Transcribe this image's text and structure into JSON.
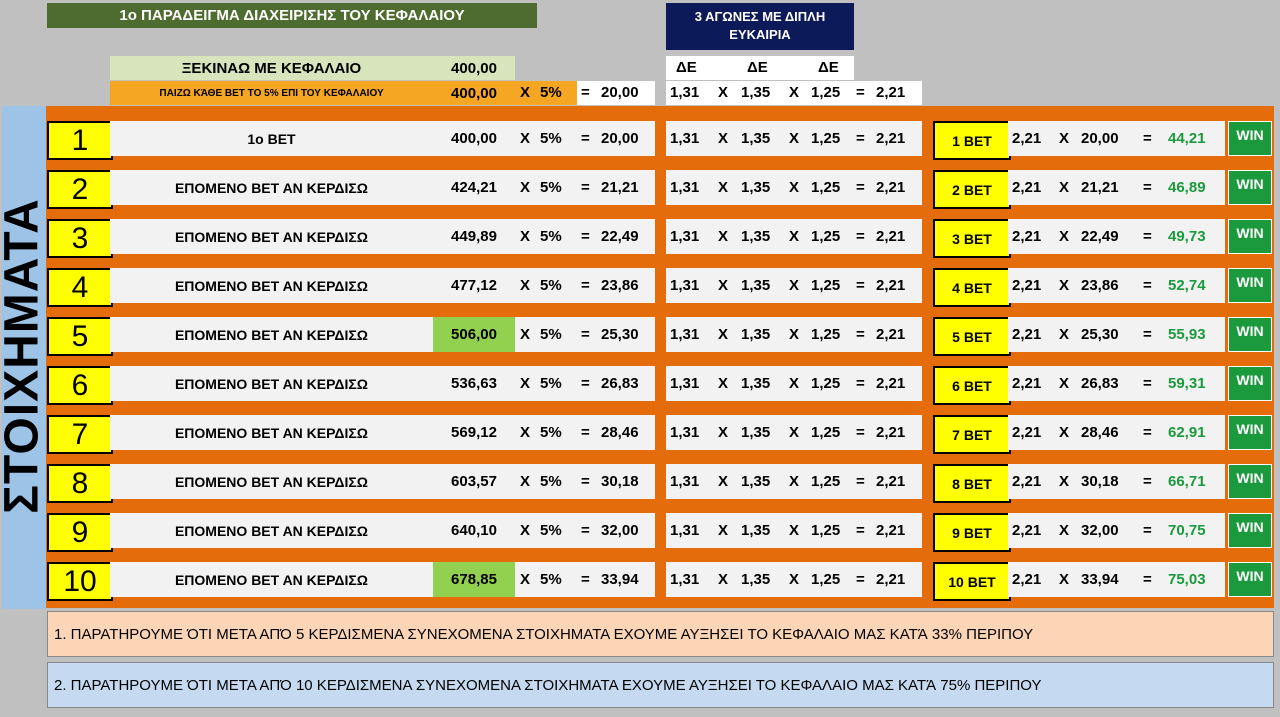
{
  "title": "1ο ΠΑΡΑΔΕΙΓΜΑ ΔΙΑΧΕΙΡΙΣΗΣ  ΤΟΥ ΚΕΦΑΛΑΙΟΥ",
  "double_chance_header": "3 ΑΓΩΝΕΣ ΜΕ ΔΙΠΛΗ\nΕΥΚΑΙΡΙΑ",
  "de_labels": [
    "ΔΕ",
    "ΔΕ",
    "ΔΕ"
  ],
  "start": {
    "label": "ΞΕΚΙΝΑΩ ΜΕ  ΚΕΦΑΛΑΙΟ",
    "value": "400,00"
  },
  "play": {
    "label": "ΠΑΙΖΩ ΚΆΘΕ ΒΕΤ ΤΟ 5% ΕΠΙ ΤΟΥ ΚΕΦΑΛΑΙΟΥ",
    "value": "400,00",
    "x": "X",
    "pct": "5%",
    "eq": "=",
    "stake": "20,00"
  },
  "odds": {
    "o1": "1,31",
    "o2": "1,35",
    "o3": "1,25",
    "total": "2,21",
    "x": "X",
    "eq": "="
  },
  "side_label": "ΣΤΟΙΧΗΜΑΤΑ",
  "rows": [
    {
      "num": "1",
      "label": "1ο ΒΕΤ",
      "capital": "400,00",
      "stake": "20,00",
      "bet": "1 ΒΕΤ",
      "payout": "44,21",
      "highlight": false
    },
    {
      "num": "2",
      "label": "ΕΠΟΜΕΝΟ ΒΕΤ ΑΝ ΚΕΡΔΙΣΩ",
      "capital": "424,21",
      "stake": "21,21",
      "bet": "2 ΒΕΤ",
      "payout": "46,89",
      "highlight": false
    },
    {
      "num": "3",
      "label": "ΕΠΟΜΕΝΟ ΒΕΤ ΑΝ ΚΕΡΔΙΣΩ",
      "capital": "449,89",
      "stake": "22,49",
      "bet": "3 ΒΕΤ",
      "payout": "49,73",
      "highlight": false
    },
    {
      "num": "4",
      "label": "ΕΠΟΜΕΝΟ ΒΕΤ ΑΝ ΚΕΡΔΙΣΩ",
      "capital": "477,12",
      "stake": "23,86",
      "bet": "4 ΒΕΤ",
      "payout": "52,74",
      "highlight": false
    },
    {
      "num": "5",
      "label": "ΕΠΟΜΕΝΟ ΒΕΤ ΑΝ ΚΕΡΔΙΣΩ",
      "capital": "506,00",
      "stake": "25,30",
      "bet": "5 ΒΕΤ",
      "payout": "55,93",
      "highlight": true
    },
    {
      "num": "6",
      "label": "ΕΠΟΜΕΝΟ ΒΕΤ ΑΝ ΚΕΡΔΙΣΩ",
      "capital": "536,63",
      "stake": "26,83",
      "bet": "6 ΒΕΤ",
      "payout": "59,31",
      "highlight": false
    },
    {
      "num": "7",
      "label": "ΕΠΟΜΕΝΟ ΒΕΤ ΑΝ ΚΕΡΔΙΣΩ",
      "capital": "569,12",
      "stake": "28,46",
      "bet": "7 ΒΕΤ",
      "payout": "62,91",
      "highlight": false
    },
    {
      "num": "8",
      "label": "ΕΠΟΜΕΝΟ ΒΕΤ ΑΝ ΚΕΡΔΙΣΩ",
      "capital": "603,57",
      "stake": "30,18",
      "bet": "8 ΒΕΤ",
      "payout": "66,71",
      "highlight": false
    },
    {
      "num": "9",
      "label": "ΕΠΟΜΕΝΟ ΒΕΤ ΑΝ ΚΕΡΔΙΣΩ",
      "capital": "640,10",
      "stake": "32,00",
      "bet": "9 ΒΕΤ",
      "payout": "70,75",
      "highlight": false
    },
    {
      "num": "10",
      "label": "ΕΠΟΜΕΝΟ ΒΕΤ ΑΝ ΚΕΡΔΙΣΩ",
      "capital": "678,85",
      "stake": "33,94",
      "bet": "10 ΒΕΤ",
      "payout": "75,03",
      "highlight": true
    }
  ],
  "pct_label": "5%",
  "win_label": "WIN",
  "notes": [
    "1. ΠΑΡΑΤΗΡΟΥΜΕ ΌΤΙ ΜΕΤΑ ΑΠΌ 5 ΚΕΡΔΙΣΜΕΝΑ ΣΥΝΕΧΟΜΕΝΑ ΣΤΟΙΧΗΜΑΤΑ ΕΧΟΥΜΕ ΑΥΞΗΣΕΙ ΤΟ ΚΕΦΑΛΑΙΟ ΜΑΣ ΚΑΤΆ 33% ΠΕΡΙΠΟΥ",
    "2. ΠΑΡΑΤΗΡΟΥΜΕ ΌΤΙ ΜΕΤΑ ΑΠΌ 10 ΚΕΡΔΙΣΜΕΝΑ ΣΥΝΕΧΟΜΕΝΑ ΣΤΟΙΧΗΜΑΤΑ ΕΧΟΥΜΕ ΑΥΞΗΣΕΙ ΤΟ ΚΕΦΑΛΑΙΟ ΜΑΣ ΚΑΤΆ 75% ΠΕΡΙΠΟΥ"
  ],
  "colors": {
    "title_bg": "#4e6b30",
    "navy": "#0c1a5a",
    "orange": "#e46c0a",
    "yellow": "#ffff00",
    "win": "#1a9a3c",
    "highlight": "#92d050"
  }
}
